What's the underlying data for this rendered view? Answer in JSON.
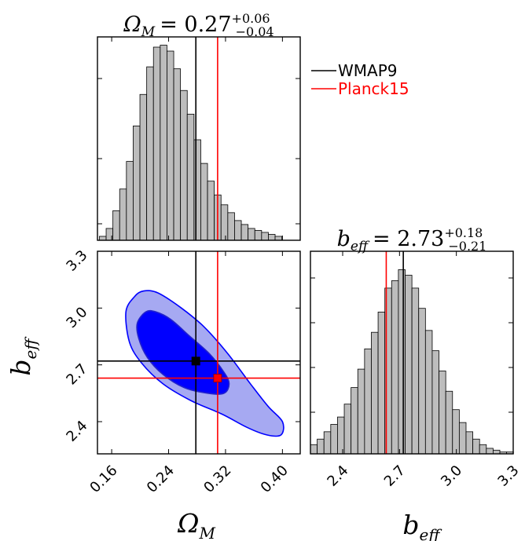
{
  "chart_data": [
    {
      "type": "bar",
      "panel": "top-left histogram",
      "title": {
        "sym": "Ω",
        "sub": "M",
        "eq": "= 0.27",
        "sup": "+0.06",
        "subv": "−0.04"
      },
      "xlim": [
        0.14,
        0.425
      ],
      "bin_start": 0.1427,
      "bin_width": 0.0095,
      "counts": [
        2,
        6,
        15,
        26,
        40,
        58,
        74,
        88,
        98,
        99,
        96,
        87,
        76,
        64,
        51,
        39,
        30,
        23,
        18,
        14,
        10,
        8,
        6,
        5,
        4,
        3,
        2
      ],
      "ylim": [
        0,
        100
      ],
      "markers": [
        {
          "name": "WMAP9",
          "x": 0.2783,
          "color": "#000000"
        },
        {
          "name": "Planck15",
          "x": 0.3089,
          "color": "#ff0000"
        }
      ],
      "legend": [
        {
          "label": "WMAP9",
          "color": "#000000"
        },
        {
          "label": "Planck15",
          "color": "#ff0000"
        }
      ],
      "legend_placement": "top-right"
    },
    {
      "type": "bar",
      "panel": "bottom-right histogram",
      "title": {
        "sym": "b",
        "sub": "eff",
        "eq": "= 2.73",
        "sup": "+0.18",
        "subv": "−0.21"
      },
      "xlim": [
        2.23,
        3.3
      ],
      "xticks": [
        "2.4",
        "2.7",
        "3.0",
        "3.3"
      ],
      "bin_start": 2.23,
      "bin_width": 0.0357,
      "counts": [
        5,
        8,
        12,
        16,
        20,
        27,
        36,
        46,
        57,
        66,
        77,
        90,
        94,
        100,
        97,
        90,
        79,
        67,
        56,
        45,
        34,
        24,
        17,
        12,
        8,
        5,
        3,
        2,
        1,
        1
      ],
      "ylim": [
        0,
        110
      ],
      "markers": [
        {
          "name": "WMAP9",
          "x": 2.72,
          "color": "#000000"
        },
        {
          "name": "Planck15",
          "x": 2.63,
          "color": "#ff0000"
        }
      ]
    },
    {
      "type": "scatter",
      "panel": "bottom-left 2D contour",
      "xlabel": {
        "sym": "Ω",
        "sub": "M"
      },
      "ylabel": {
        "sym": "b",
        "sub": "eff"
      },
      "xlim": [
        0.14,
        0.425
      ],
      "ylim": [
        2.23,
        3.3
      ],
      "xticks": [
        "0.16",
        "0.24",
        "0.32",
        "0.40"
      ],
      "yticks": [
        "2.4",
        "2.7",
        "3.0",
        "3.3"
      ],
      "contours": [
        {
          "level": "outer",
          "fill": "#a6a9f2",
          "stroke": "#0000ff",
          "points": [
            [
              0.18,
              2.98
            ],
            [
              0.192,
              3.06
            ],
            [
              0.205,
              3.09
            ],
            [
              0.225,
              3.08
            ],
            [
              0.258,
              3.0
            ],
            [
              0.29,
              2.9
            ],
            [
              0.323,
              2.76
            ],
            [
              0.355,
              2.6
            ],
            [
              0.38,
              2.48
            ],
            [
              0.4,
              2.4
            ],
            [
              0.398,
              2.33
            ],
            [
              0.378,
              2.33
            ],
            [
              0.35,
              2.37
            ],
            [
              0.315,
              2.44
            ],
            [
              0.272,
              2.51
            ],
            [
              0.232,
              2.6
            ],
            [
              0.202,
              2.71
            ],
            [
              0.185,
              2.82
            ]
          ]
        },
        {
          "level": "inner",
          "fill": "#0000ff",
          "stroke": "#2222cc",
          "points": [
            [
              0.196,
              2.92
            ],
            [
              0.208,
              2.98
            ],
            [
              0.222,
              2.98
            ],
            [
              0.243,
              2.94
            ],
            [
              0.27,
              2.85
            ],
            [
              0.297,
              2.76
            ],
            [
              0.318,
              2.66
            ],
            [
              0.325,
              2.6
            ],
            [
              0.318,
              2.55
            ],
            [
              0.295,
              2.55
            ],
            [
              0.262,
              2.58
            ],
            [
              0.232,
              2.65
            ],
            [
              0.21,
              2.74
            ],
            [
              0.198,
              2.84
            ]
          ]
        }
      ],
      "points": [
        {
          "name": "WMAP9",
          "x": 0.2783,
          "y": 2.72,
          "color": "#000000"
        },
        {
          "name": "Planck15",
          "x": 0.3089,
          "y": 2.63,
          "color": "#ff0000"
        }
      ]
    }
  ]
}
